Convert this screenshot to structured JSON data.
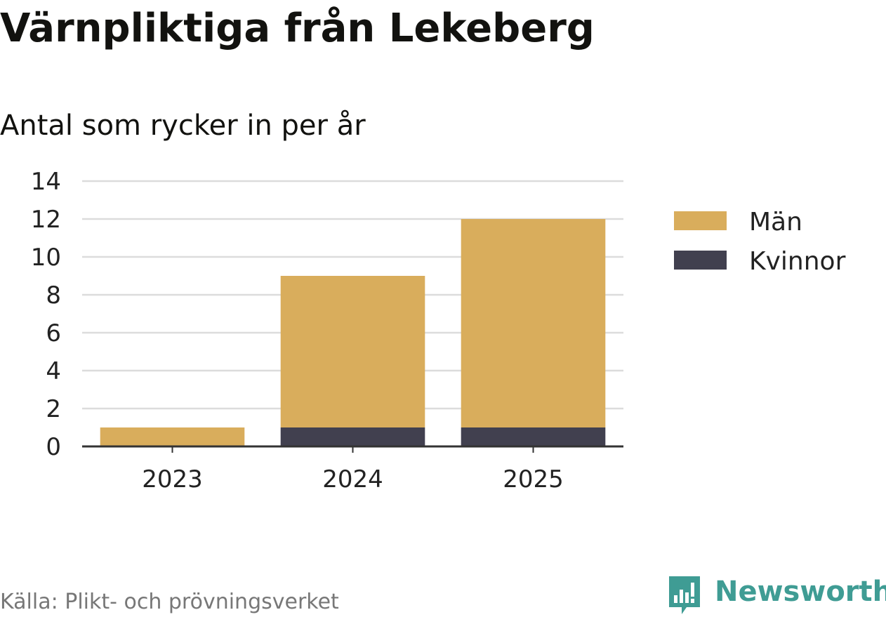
{
  "title": "Värnpliktiga från Lekeberg",
  "subtitle": "Antal som rycker in per år",
  "source": "Källa: Plikt- och prövningsverket",
  "brand": {
    "name": "Newsworthy",
    "icon": "bar-chart-speech-bubble-icon"
  },
  "chart_data": {
    "type": "bar",
    "stacked": true,
    "categories": [
      "2023",
      "2024",
      "2025"
    ],
    "series": [
      {
        "name": "Kvinnor",
        "color": "#41404f",
        "values": [
          0,
          1,
          1
        ]
      },
      {
        "name": "Män",
        "color": "#d9ad5c",
        "values": [
          1,
          8,
          11
        ]
      }
    ],
    "ylim": [
      0,
      14
    ],
    "yticks": [
      0,
      2,
      4,
      6,
      8,
      10,
      12,
      14
    ],
    "grid": true,
    "legend": {
      "position": "right",
      "order": [
        "Män",
        "Kvinnor"
      ]
    }
  }
}
